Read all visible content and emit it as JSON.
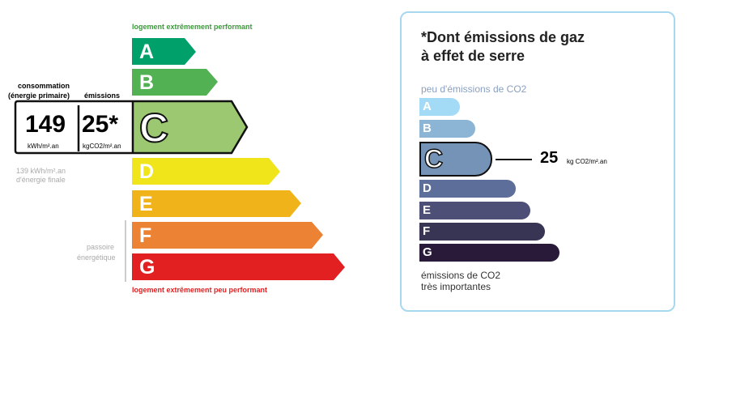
{
  "energy": {
    "top_label": "logement extrêmement performant",
    "bottom_label": "logement extrêmement peu performant",
    "classes": [
      {
        "letter": "A",
        "color": "#00a06b"
      },
      {
        "letter": "B",
        "color": "#52b153"
      },
      {
        "letter": "C",
        "color": "#9cc872"
      },
      {
        "letter": "D",
        "color": "#f0e41a"
      },
      {
        "letter": "E",
        "color": "#f0b41a"
      },
      {
        "letter": "F",
        "color": "#eb8234"
      },
      {
        "letter": "G",
        "color": "#e32021"
      }
    ],
    "current_class": "C",
    "consumption_label": "consommation",
    "consumption_sublabel": "(énergie primaire)",
    "emissions_label": "émissions",
    "consumption_value": "149",
    "consumption_unit": "kWh/m².an",
    "emissions_value": "25*",
    "emissions_unit": "kgCO2/m².an",
    "final_energy_line1": "139 kWh/m².an",
    "final_energy_line2": "d'énergie finale",
    "passoire_line1": "passoire",
    "passoire_line2": "énergétique"
  },
  "ges": {
    "title_line1": "*Dont émissions de gaz",
    "title_line2": "à effet de serre",
    "top_label": "peu d'émissions de CO2",
    "bottom_line1": "émissions de CO2",
    "bottom_line2": "très importantes",
    "classes": [
      {
        "letter": "A",
        "color": "#a3dbf6"
      },
      {
        "letter": "B",
        "color": "#8cb4d4"
      },
      {
        "letter": "C",
        "color": "#7593b7"
      },
      {
        "letter": "D",
        "color": "#5e6e9a"
      },
      {
        "letter": "E",
        "color": "#4d4f76"
      },
      {
        "letter": "F",
        "color": "#383454"
      },
      {
        "letter": "G",
        "color": "#281a38"
      }
    ],
    "current_class": "C",
    "value": "25",
    "unit": "kg CO2/m².an",
    "border_color": "#a8d8f0"
  }
}
